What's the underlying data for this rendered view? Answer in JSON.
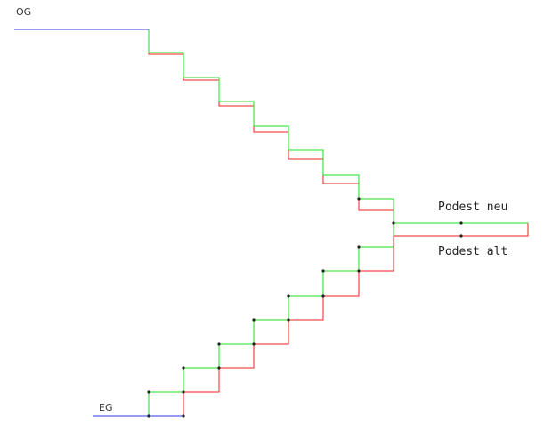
{
  "labels": {
    "upper_floor": "OG",
    "lower_floor": "EG",
    "landing_new": "Podest neu",
    "landing_old": "Podest alt"
  }
}
